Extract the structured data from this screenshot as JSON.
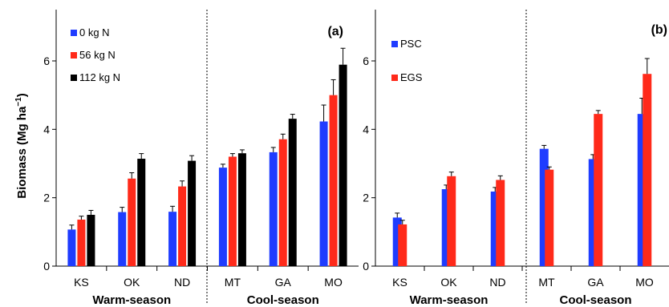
{
  "ylabel": "Biomass (Mg ha",
  "ylabel_sup": "−1",
  "ylabel_end": ")",
  "chart_data": [
    {
      "panel": "(a)",
      "type": "bar",
      "categories": [
        "KS",
        "OK",
        "ND",
        "MT",
        "GA",
        "MO"
      ],
      "group_labels": [
        "Warm-season",
        "Cool-season"
      ],
      "ylim": [
        0,
        7.5
      ],
      "yticks": [
        0,
        2,
        4,
        6
      ],
      "legend_position": "top-left",
      "series": [
        {
          "name": "0 kg N",
          "color": "#1f3cff",
          "values": [
            1.07,
            1.58,
            1.59,
            2.88,
            3.33,
            4.23
          ],
          "errors": [
            0.13,
            0.14,
            0.16,
            0.1,
            0.14,
            0.48
          ]
        },
        {
          "name": "56 kg N",
          "color": "#ff2a1a",
          "values": [
            1.36,
            2.56,
            2.33,
            3.2,
            3.71,
            5.0
          ],
          "errors": [
            0.1,
            0.17,
            0.16,
            0.09,
            0.15,
            0.45
          ]
        },
        {
          "name": "112 kg N",
          "color": "#000000",
          "values": [
            1.5,
            3.14,
            3.08,
            3.3,
            4.31,
            5.89
          ],
          "errors": [
            0.13,
            0.15,
            0.15,
            0.1,
            0.13,
            0.48
          ]
        }
      ]
    },
    {
      "panel": "(b)",
      "type": "bar",
      "categories": [
        "KS",
        "OK",
        "ND",
        "MT",
        "GA",
        "MO"
      ],
      "group_labels": [
        "Warm-season",
        "Cool-season"
      ],
      "ylim": [
        0,
        7.5
      ],
      "yticks": [
        0,
        2,
        4,
        6
      ],
      "legend_position": "top-left",
      "series": [
        {
          "name": "PSC",
          "color": "#1f3cff",
          "values": [
            1.42,
            2.25,
            2.18,
            3.43,
            3.13,
            4.45
          ],
          "errors": [
            0.13,
            0.12,
            0.12,
            0.1,
            0.13,
            0.46
          ]
        },
        {
          "name": "EGS",
          "color": "#ff2a1a",
          "values": [
            1.22,
            2.63,
            2.52,
            2.82,
            4.45,
            5.62
          ],
          "errors": [
            0.12,
            0.12,
            0.12,
            0.08,
            0.1,
            0.45
          ]
        }
      ]
    }
  ]
}
